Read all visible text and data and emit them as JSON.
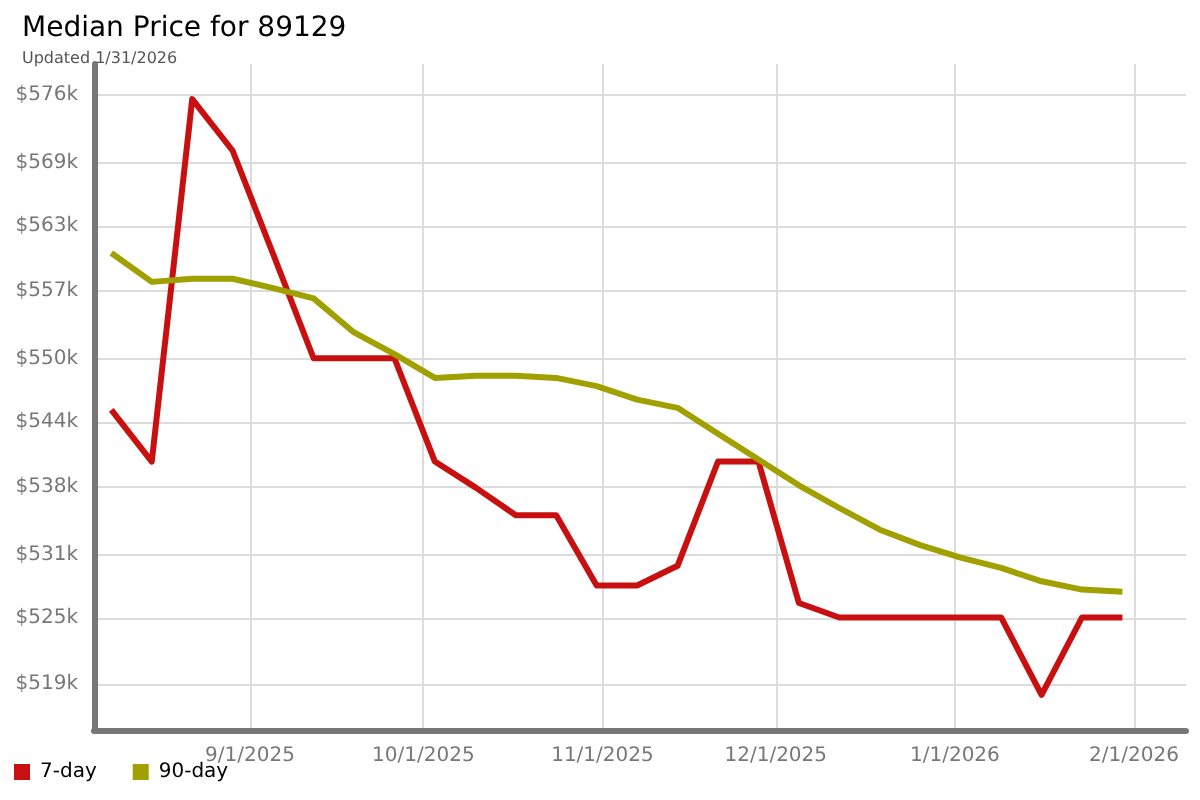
{
  "chart_data": {
    "type": "line",
    "title": "Median Price for 89129",
    "subtitle": "Updated 1/31/2026",
    "x": [
      "2025-08-08",
      "2025-08-15",
      "2025-08-22",
      "2025-08-29",
      "2025-09-05",
      "2025-09-12",
      "2025-09-19",
      "2025-09-26",
      "2025-10-03",
      "2025-10-10",
      "2025-10-17",
      "2025-10-24",
      "2025-10-31",
      "2025-11-07",
      "2025-11-14",
      "2025-11-21",
      "2025-11-28",
      "2025-12-05",
      "2025-12-12",
      "2025-12-19",
      "2025-12-26",
      "2026-01-02",
      "2026-01-09",
      "2026-01-16",
      "2026-01-23",
      "2026-01-30"
    ],
    "series": [
      {
        "name": "7-day",
        "color": "#c81010",
        "values": [
          545.5,
          540.5,
          575.6,
          570.6,
          560.6,
          550.5,
          550.5,
          550.5,
          540.5,
          538,
          535.3,
          535.3,
          528.5,
          528.5,
          530.4,
          540.5,
          540.5,
          526.8,
          525.4,
          525.4,
          525.4,
          525.4,
          525.4,
          517.9,
          525.4,
          525.4
        ]
      },
      {
        "name": "90-day",
        "color": "#a0a000",
        "values": [
          560.7,
          557.9,
          558.2,
          558.2,
          557.3,
          556.3,
          553,
          550.9,
          548.6,
          548.8,
          548.8,
          548.6,
          547.8,
          546.5,
          545.7,
          543.2,
          540.7,
          538.2,
          536,
          533.9,
          532.4,
          531.2,
          530.2,
          528.9,
          528.1,
          527.9
        ]
      }
    ],
    "xlim": [
      "2025-08-05",
      "2026-02-10"
    ],
    "xticks": [
      {
        "value": "2025-09-01",
        "label": "9/1/2025"
      },
      {
        "value": "2025-10-01",
        "label": "10/1/2025"
      },
      {
        "value": "2025-11-01",
        "label": "11/1/2025"
      },
      {
        "value": "2025-12-01",
        "label": "12/1/2025"
      },
      {
        "value": "2026-01-01",
        "label": "1/1/2026"
      },
      {
        "value": "2026-02-01",
        "label": "2/1/2026"
      }
    ],
    "ylim": [
      514.5,
      579
    ],
    "yticks": [
      {
        "value": 519,
        "label": "$519k"
      },
      {
        "value": 525.33,
        "label": "$525k"
      },
      {
        "value": 531.4,
        "label": "$531k"
      },
      {
        "value": 538,
        "label": "$538k"
      },
      {
        "value": 544.33,
        "label": "$544k"
      },
      {
        "value": 550.4,
        "label": "$550k"
      },
      {
        "value": 557,
        "label": "$557k"
      },
      {
        "value": 563.33,
        "label": "$563k"
      },
      {
        "value": 569.4,
        "label": "$569k"
      },
      {
        "value": 576,
        "label": "$576k"
      }
    ],
    "grid": true,
    "legend": "bottom left",
    "marker": "none",
    "line_style": "solid"
  }
}
